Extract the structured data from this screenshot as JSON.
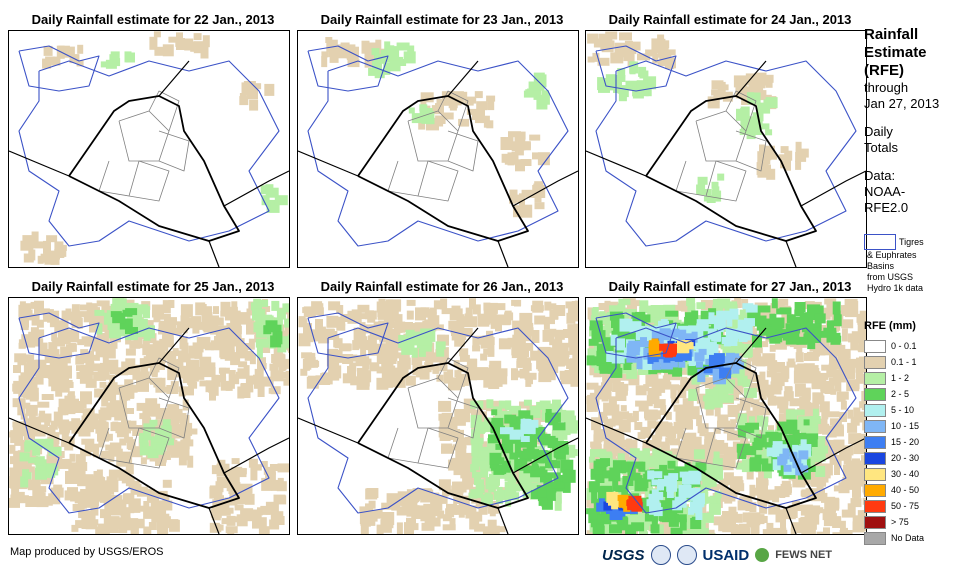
{
  "panels": [
    {
      "title": "Daily Rainfall estimate for 22 Jan., 2013",
      "rainfall_level": "sparse"
    },
    {
      "title": "Daily Rainfall estimate for 23 Jan., 2013",
      "rainfall_level": "light"
    },
    {
      "title": "Daily Rainfall estimate for 24 Jan., 2013",
      "rainfall_level": "light"
    },
    {
      "title": "Daily Rainfall estimate for 25 Jan., 2013",
      "rainfall_level": "moderate"
    },
    {
      "title": "Daily Rainfall estimate for 26 Jan., 2013",
      "rainfall_level": "moderate"
    },
    {
      "title": "Daily Rainfall estimate for 27 Jan., 2013",
      "rainfall_level": "heavy"
    }
  ],
  "side": {
    "title_lines": [
      "Rainfall",
      "Estimate",
      "(RFE)"
    ],
    "through_lines": [
      "through",
      "Jan 27, 2013"
    ],
    "daily_lines": [
      "Daily",
      "Totals"
    ],
    "data_lines": [
      "Data:",
      "NOAA-",
      "RFE2.0"
    ]
  },
  "basin_legend": {
    "lines": [
      "Tigres",
      "& Euphrates",
      "Basins",
      "from USGS",
      "Hydro 1k data"
    ],
    "color": "#3b52c7"
  },
  "rfe_legend": {
    "title": "RFE (mm)",
    "items": [
      {
        "label": "0 - 0.1",
        "color": "#ffffff"
      },
      {
        "label": "0.1 - 1",
        "color": "#e3d1b0"
      },
      {
        "label": "1 - 2",
        "color": "#b5efa5"
      },
      {
        "label": "2 - 5",
        "color": "#5fd35a"
      },
      {
        "label": "5 - 10",
        "color": "#b1f0ef"
      },
      {
        "label": "10 - 15",
        "color": "#7fb6f5"
      },
      {
        "label": "15 - 20",
        "color": "#3d7ef2"
      },
      {
        "label": "20 - 30",
        "color": "#1a46e0"
      },
      {
        "label": "30 - 40",
        "color": "#ffe680"
      },
      {
        "label": "40 - 50",
        "color": "#ffaa00"
      },
      {
        "label": "50 - 75",
        "color": "#ff3a10"
      },
      {
        "label": "> 75",
        "color": "#a01010"
      },
      {
        "label": "No Data",
        "color": "#a8a8a8"
      }
    ]
  },
  "footer": {
    "credit": "Map produced by USGS/EROS",
    "logos": {
      "usgs": "USGS",
      "usaid": "USAID",
      "fews": "FEWS NET"
    }
  }
}
